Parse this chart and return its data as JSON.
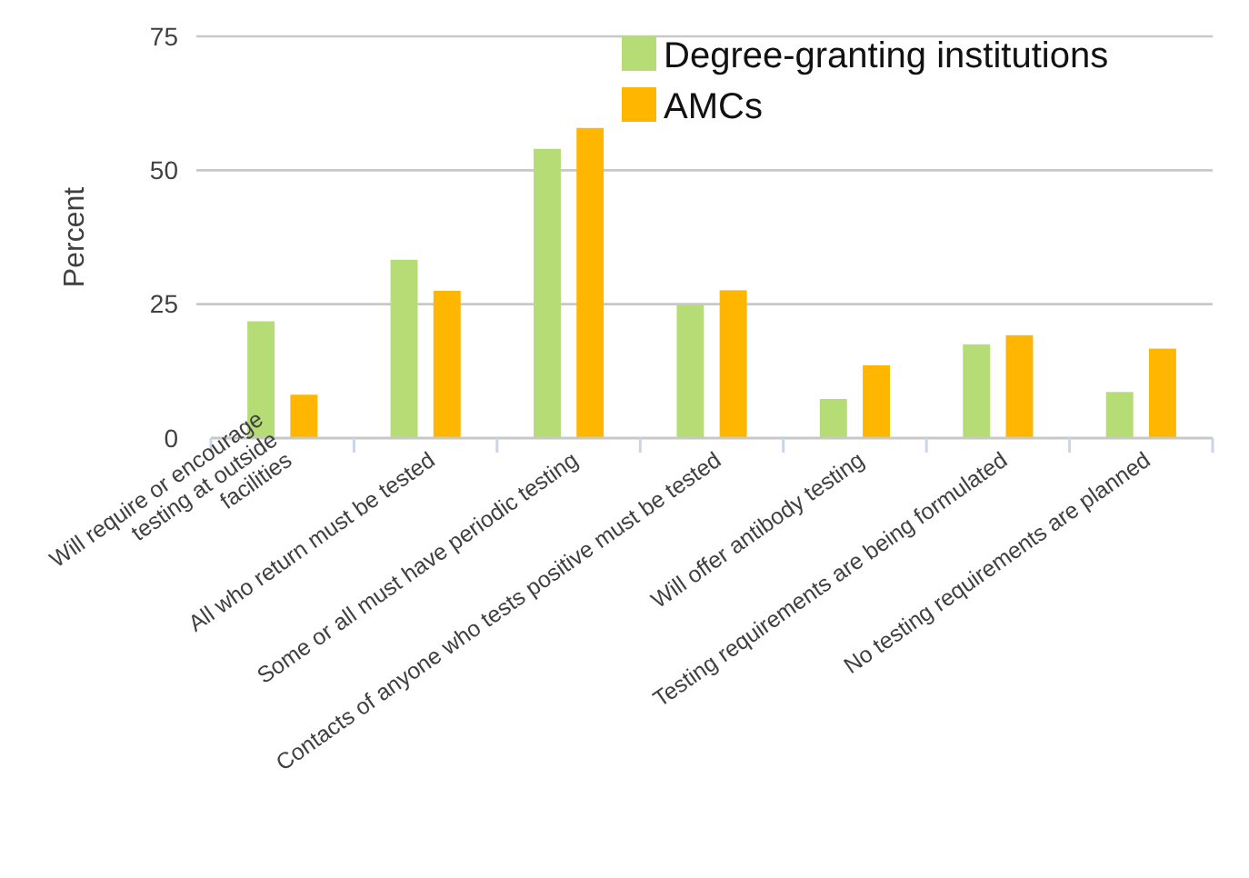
{
  "chart_data": {
    "type": "bar",
    "ylabel": "Percent",
    "categories": [
      "Will require or encourage testing at outside facilities",
      "All who return must be tested",
      "Some or all must have periodic testing",
      "Contacts of anyone who tests positive must be tested",
      "Will offer antibody testing",
      "Testing requirements are being formulated",
      "No testing requirements are planned"
    ],
    "series": [
      {
        "name": "Degree-granting institutions",
        "color": "#b5dc75",
        "values": [
          21.8,
          33.3,
          54,
          24.8,
          7.3,
          17.5,
          8.6
        ]
      },
      {
        "name": "AMCs",
        "color": "#ffb600",
        "values": [
          8.1,
          27.5,
          57.9,
          27.6,
          13.6,
          19.2,
          16.7
        ]
      }
    ],
    "ylim": [
      0,
      75
    ],
    "yticks": [
      0,
      25,
      50,
      75
    ],
    "grid": "y",
    "legend": "top right"
  }
}
